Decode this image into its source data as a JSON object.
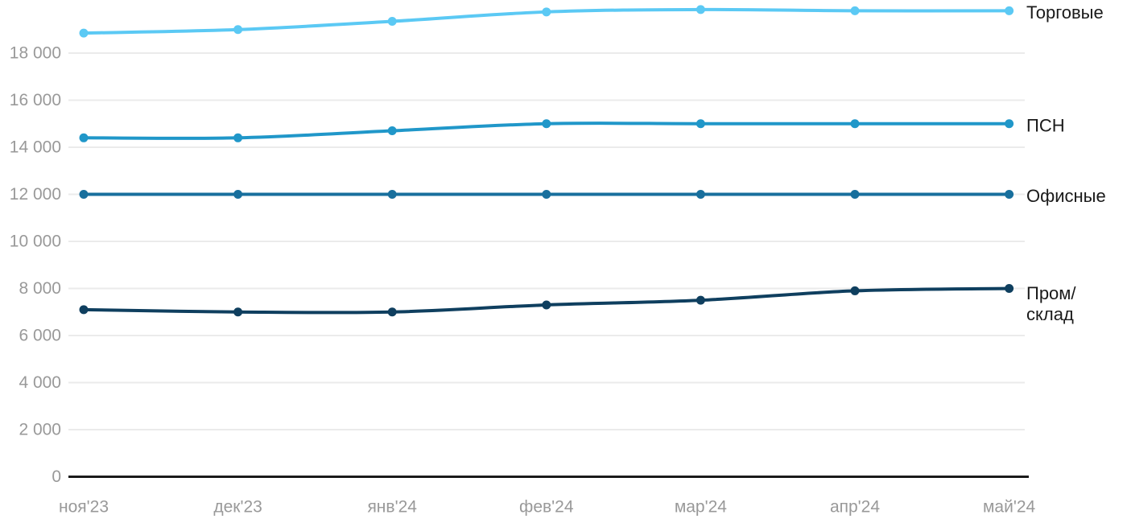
{
  "chart_data": {
    "type": "line",
    "title": "",
    "xlabel": "",
    "ylabel": "",
    "grid": true,
    "legend_position": "right",
    "categories": [
      "ноя'23",
      "дек'23",
      "янв'24",
      "фев'24",
      "мар'24",
      "апр'24",
      "май'24"
    ],
    "series": [
      {
        "name": "Торговые",
        "legend_lines": [
          "Торговые"
        ],
        "color": "#5bc9f4",
        "values": [
          18850,
          19000,
          19350,
          19750,
          19850,
          19800,
          19800
        ]
      },
      {
        "name": "ПСН",
        "legend_lines": [
          "ПСН"
        ],
        "color": "#2097c9",
        "values": [
          14400,
          14400,
          14700,
          15000,
          15000,
          15000,
          15000
        ]
      },
      {
        "name": "Офисные",
        "legend_lines": [
          "Офисные"
        ],
        "color": "#186f9d",
        "values": [
          12000,
          12000,
          12000,
          12000,
          12000,
          12000,
          12000
        ]
      },
      {
        "name": "Пром/склад",
        "legend_lines": [
          "Пром/",
          "склад"
        ],
        "color": "#0f3f5f",
        "values": [
          7100,
          7000,
          7000,
          7300,
          7500,
          7900,
          8000
        ]
      }
    ],
    "yticks": [
      0,
      2000,
      4000,
      6000,
      8000,
      10000,
      12000,
      14000,
      16000,
      18000
    ],
    "ytick_labels": [
      "0",
      "2 000",
      "4 000",
      "6 000",
      "8 000",
      "10 000",
      "12 000",
      "14 000",
      "16 000",
      "18 000"
    ],
    "ylim": [
      0,
      20250
    ],
    "colors": {
      "background": "#ffffff",
      "gridline": "#ebebeb",
      "axis_line": "#1a1a1a",
      "tick_label": "#999999",
      "legend_text": "#1a1a1a"
    }
  }
}
